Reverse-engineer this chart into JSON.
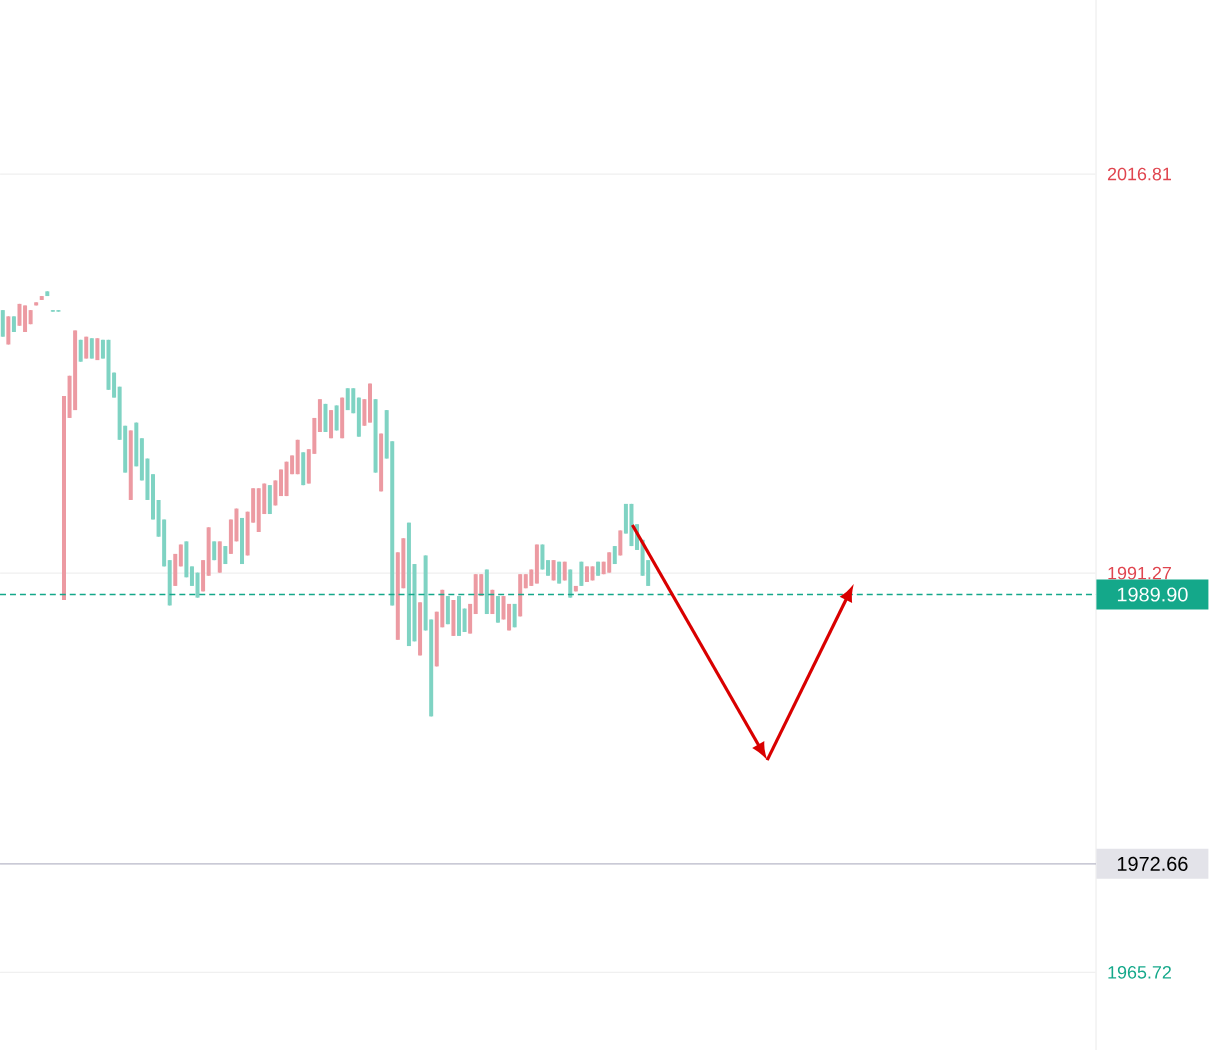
{
  "chart_data": {
    "type": "candlestick",
    "categories": [
      null,
      null,
      null,
      null,
      null,
      null,
      null,
      null,
      null,
      null,
      null,
      null,
      null,
      null,
      null,
      null,
      null,
      null,
      null,
      null,
      null,
      null,
      null,
      null,
      null,
      null,
      null,
      null,
      null,
      null,
      null,
      null,
      null,
      null,
      null,
      null,
      null,
      null,
      null,
      null,
      null,
      null,
      null,
      null,
      null,
      null,
      null,
      null,
      null,
      null,
      null,
      null,
      null,
      null,
      null,
      null,
      null,
      null,
      null,
      null,
      null,
      null,
      null,
      null,
      null,
      null,
      null,
      null,
      null,
      null,
      null,
      null,
      null,
      null,
      null,
      null,
      null,
      null,
      null,
      null,
      null,
      null,
      null,
      null,
      null,
      null,
      null,
      null,
      null,
      null,
      null,
      null,
      null,
      null,
      null,
      null,
      null,
      null,
      null,
      null,
      null,
      null,
      null,
      null,
      null,
      null,
      null,
      null,
      null,
      null,
      null,
      null,
      null,
      null,
      null,
      null,
      null,
      null,
      null,
      null,
      null,
      null,
      null,
      null,
      null,
      null,
      null,
      null,
      null,
      null,
      null,
      null,
      null,
      null,
      null,
      null,
      null,
      null,
      null,
      null,
      null,
      null,
      null,
      null,
      null,
      null,
      null,
      null,
      null,
      null,
      null,
      null,
      null,
      null,
      null,
      null,
      null,
      null,
      null,
      null,
      null,
      null,
      null,
      null,
      null,
      null,
      null,
      null,
      null,
      null,
      null,
      null,
      null,
      null,
      null,
      null,
      null,
      null,
      null,
      null,
      null,
      null,
      null,
      null,
      null,
      null,
      null,
      null,
      null,
      null,
      null,
      null,
      null,
      null,
      null,
      null,
      null
    ],
    "ohlc": [
      [
        2008.1,
        2008.1,
        2006.4,
        2006.4
      ],
      [
        2005.9,
        2007.7,
        2005.9,
        2007.7
      ],
      [
        2007.7,
        2007.7,
        2006.7,
        2006.7
      ],
      [
        2007.1,
        2008.5,
        2007.1,
        2008.5
      ],
      [
        2006.7,
        2008.4,
        2006.7,
        2008.4
      ],
      [
        2007.2,
        2008.1,
        2007.2,
        2008.1
      ],
      [
        2008.4,
        2008.6,
        2008.4,
        2008.6
      ],
      [
        2008.75,
        2009.0,
        2008.75,
        2009.0
      ],
      [
        2009.3,
        2009.3,
        2009.0,
        2009.0
      ],
      [
        2008.1,
        2008.1,
        2008.0,
        2008.0
      ],
      [
        2008.1,
        2008.1,
        2008.0,
        2008.0
      ],
      [
        1989.55,
        2002.6,
        1989.55,
        2002.6
      ],
      [
        2001.2,
        2003.9,
        2001.2,
        2003.9
      ],
      [
        2001.7,
        2006.8,
        2001.7,
        2006.8
      ],
      [
        2006.2,
        2006.2,
        2004.8,
        2004.8
      ],
      [
        2005.0,
        2006.4,
        2005.0,
        2006.4
      ],
      [
        2006.3,
        2006.3,
        2005.0,
        2005.0
      ],
      [
        2004.9,
        2006.3,
        2004.9,
        2006.3
      ],
      [
        2006.2,
        2006.2,
        2005.0,
        2005.0
      ],
      [
        2006.2,
        2006.2,
        2003.0,
        2003.0
      ],
      [
        2004.1,
        2004.1,
        2002.5,
        2002.5
      ],
      [
        2003.2,
        2003.2,
        1999.8,
        1999.8
      ],
      [
        2000.7,
        2000.7,
        1997.7,
        1997.7
      ],
      [
        1995.95,
        2000.4,
        1995.95,
        2000.4
      ],
      [
        2000.9,
        2000.9,
        1998.1,
        1998.1
      ],
      [
        1999.9,
        1999.9,
        1997.2,
        1997.2
      ],
      [
        1998.6,
        1998.6,
        1995.95,
        1995.95
      ],
      [
        1997.6,
        1997.6,
        1994.7,
        1994.7
      ],
      [
        1995.95,
        1995.95,
        1993.6,
        1993.6
      ],
      [
        1994.7,
        1994.7,
        1991.7,
        1991.7
      ],
      [
        1992.1,
        1992.1,
        1989.2,
        1989.2
      ],
      [
        1990.45,
        1992.5,
        1990.45,
        1992.5
      ],
      [
        1991.7,
        1993.1,
        1991.7,
        1993.1
      ],
      [
        1993.3,
        1993.3,
        1991.0,
        1991.0
      ],
      [
        1991.7,
        1991.7,
        1990.45,
        1990.45
      ],
      [
        1991.3,
        1991.3,
        1989.7,
        1989.7
      ],
      [
        1990.1,
        1992.1,
        1990.1,
        1992.1
      ],
      [
        1991.1,
        1994.2,
        1991.1,
        1994.2
      ],
      [
        1993.3,
        1993.3,
        1992.1,
        1992.1
      ],
      [
        1991.3,
        1993.3,
        1991.3,
        1993.3
      ],
      [
        1993.0,
        1993.0,
        1991.85,
        1991.85
      ],
      [
        1992.5,
        1994.7,
        1992.5,
        1994.7
      ],
      [
        1993.3,
        1995.4,
        1993.3,
        1995.4
      ],
      [
        1994.8,
        1994.8,
        1991.85,
        1991.85
      ],
      [
        1992.4,
        1995.2,
        1992.4,
        1995.2
      ],
      [
        1994.5,
        1996.7,
        1994.5,
        1996.7
      ],
      [
        1993.9,
        1996.7,
        1993.9,
        1996.7
      ],
      [
        1995.05,
        1997.0,
        1995.05,
        1997.0
      ],
      [
        1996.9,
        1996.9,
        1995.05,
        1995.05
      ],
      [
        1995.6,
        1997.2,
        1995.6,
        1997.2
      ],
      [
        1996.2,
        1997.9,
        1996.2,
        1997.9
      ],
      [
        1996.2,
        1998.4,
        1996.2,
        1998.4
      ],
      [
        1997.6,
        1998.8,
        1997.6,
        1998.8
      ],
      [
        1997.6,
        1999.8,
        1997.6,
        1999.8
      ],
      [
        1999.0,
        1999.0,
        1996.9,
        1996.9
      ],
      [
        1997.0,
        1999.2,
        1997.0,
        1999.2
      ],
      [
        1998.9,
        2001.2,
        1998.9,
        2001.2
      ],
      [
        2000.3,
        2002.4,
        2000.3,
        2002.4
      ],
      [
        2002.1,
        2002.1,
        2000.3,
        2000.3
      ],
      [
        1999.9,
        2001.7,
        1999.9,
        2001.7
      ],
      [
        2002.0,
        2002.0,
        2000.4,
        2000.4
      ],
      [
        1999.9,
        2002.5,
        1999.9,
        2002.5
      ],
      [
        2003.1,
        2003.1,
        2001.7,
        2001.7
      ],
      [
        2003.1,
        2003.1,
        2001.5,
        2001.5
      ],
      [
        2002.5,
        2002.5,
        2000.0,
        2000.0
      ],
      [
        2000.7,
        2002.4,
        2000.7,
        2002.4
      ],
      [
        2000.9,
        2003.4,
        2000.9,
        2003.4
      ],
      [
        2002.4,
        2002.4,
        1997.7,
        1997.7
      ],
      [
        1996.5,
        2000.2,
        1996.5,
        2000.2
      ],
      [
        2001.7,
        2001.7,
        1998.6,
        1998.6
      ],
      [
        1999.7,
        1999.7,
        1989.2,
        1989.2
      ],
      [
        1987.0,
        1992.6,
        1987.0,
        1992.6
      ],
      [
        1990.3,
        1993.5,
        1990.3,
        1993.5
      ],
      [
        1994.5,
        1994.5,
        1986.6,
        1986.6
      ],
      [
        1991.85,
        1991.85,
        1986.9,
        1986.9
      ],
      [
        1986.0,
        1989.4,
        1986.0,
        1989.4
      ],
      [
        1992.4,
        1992.4,
        1987.6,
        1987.6
      ],
      [
        1988.3,
        1988.3,
        1982.1,
        1982.1
      ],
      [
        1985.3,
        1988.8,
        1985.3,
        1988.8
      ],
      [
        1987.8,
        1990.2,
        1987.8,
        1990.2
      ],
      [
        1989.8,
        1989.8,
        1988.0,
        1988.0
      ],
      [
        1987.25,
        1989.55,
        1987.25,
        1989.55
      ],
      [
        1989.8,
        1989.8,
        1987.25,
        1987.25
      ],
      [
        1989.0,
        1989.0,
        1987.5,
        1987.5
      ],
      [
        1987.4,
        1989.3,
        1987.4,
        1989.3
      ],
      [
        1988.65,
        1991.2,
        1988.65,
        1991.2
      ],
      [
        1989.8,
        1991.2,
        1989.8,
        1991.2
      ],
      [
        1991.5,
        1991.5,
        1988.65,
        1988.65
      ],
      [
        1988.65,
        1990.2,
        1988.65,
        1990.2
      ],
      [
        1989.8,
        1989.8,
        1988.1,
        1988.1
      ],
      [
        1988.3,
        1989.8,
        1988.3,
        1989.8
      ],
      [
        1987.6,
        1989.3,
        1987.6,
        1989.3
      ],
      [
        1989.3,
        1989.3,
        1987.8,
        1987.8
      ],
      [
        1988.5,
        1991.2,
        1988.5,
        1991.2
      ],
      [
        1990.3,
        1991.2,
        1990.3,
        1991.2
      ],
      [
        1990.45,
        1991.5,
        1990.45,
        1991.5
      ],
      [
        1990.6,
        1993.1,
        1990.6,
        1993.1
      ],
      [
        1993.1,
        1993.1,
        1991.5,
        1991.5
      ],
      [
        1992.1,
        1992.1,
        1991.1,
        1991.1
      ],
      [
        1990.8,
        1992.1,
        1990.8,
        1992.1
      ],
      [
        1992.0,
        1992.0,
        1990.6,
        1990.6
      ],
      [
        1990.8,
        1992.0,
        1990.8,
        1992.0
      ],
      [
        1991.5,
        1991.5,
        1989.7,
        1989.7
      ],
      [
        1990.1,
        1990.45,
        1990.1,
        1990.45
      ],
      [
        1992.0,
        1992.0,
        1990.45,
        1990.45
      ],
      [
        1990.7,
        1991.7,
        1990.7,
        1991.7
      ],
      [
        1990.8,
        1991.7,
        1990.8,
        1991.7
      ],
      [
        1992.0,
        1992.0,
        1991.1,
        1991.1
      ],
      [
        1991.2,
        1992.0,
        1991.2,
        1992.0
      ],
      [
        1991.3,
        1992.6,
        1991.3,
        1992.6
      ],
      [
        1993.0,
        1993.0,
        1991.85,
        1991.85
      ],
      [
        1992.4,
        1994.0,
        1992.4,
        1994.0
      ],
      [
        1995.7,
        1995.7,
        1993.8,
        1993.8
      ],
      [
        1995.7,
        1995.7,
        1993.0,
        1993.0
      ],
      [
        1994.4,
        1994.4,
        1992.75,
        1992.75
      ],
      [
        1993.4,
        1993.4,
        1991.1,
        1991.1
      ],
      [
        1992.1,
        1992.1,
        1990.45,
        1990.45
      ],
      null,
      null,
      null,
      null,
      null,
      null,
      null,
      null,
      null,
      null,
      null,
      null,
      null,
      null,
      null,
      null,
      null,
      null,
      null,
      null,
      null,
      null,
      null,
      null,
      null,
      null,
      null,
      null,
      null,
      null,
      null,
      null,
      null,
      null,
      null,
      null,
      null,
      null,
      null,
      null,
      null,
      null,
      null,
      null,
      null,
      null,
      null,
      null,
      null,
      null,
      null,
      null,
      null,
      null,
      null,
      null,
      null,
      null,
      null,
      null,
      null,
      null,
      null,
      null,
      null,
      null,
      null,
      null,
      null,
      null,
      null,
      null,
      null,
      null,
      null,
      null,
      null,
      null,
      null,
      null
    ],
    "ylim": [
      1960.75,
      2027.95
    ],
    "yticks": [
      1965.72,
      1991.27,
      2016.81
    ],
    "tick_labels": "y",
    "grid": "y",
    "ref_lines": [
      {
        "axis": "y",
        "value": 1989.9,
        "label": "1989.90",
        "color": "#14a88a",
        "line_style": "dashed"
      },
      {
        "axis": "y",
        "value": 1972.66,
        "label": "1972.66",
        "color": "#b8b8c8",
        "line_style": "solid"
      }
    ]
  }
}
